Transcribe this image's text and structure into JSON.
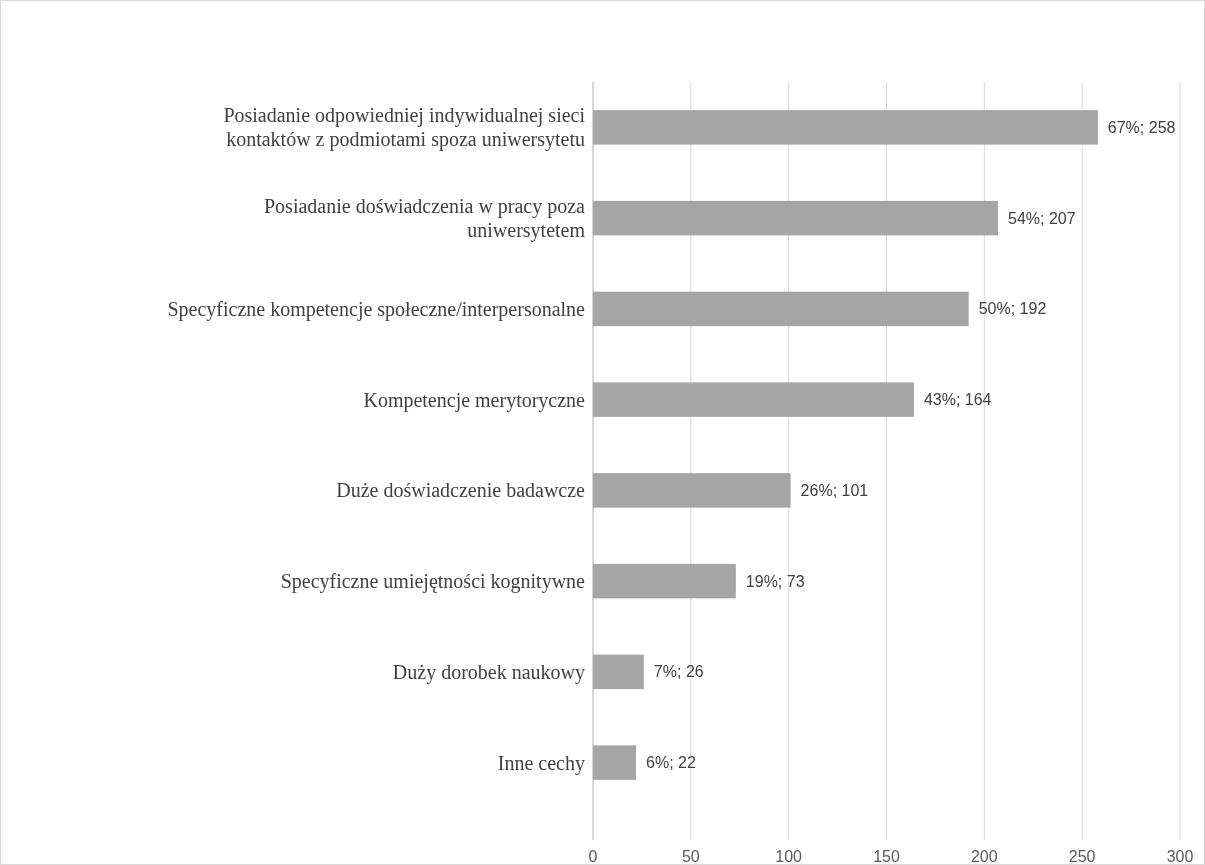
{
  "chart_data": {
    "type": "bar",
    "orientation": "horizontal",
    "categories": [
      "Posiadanie odpowiedniej indywidualnej sieci\nkontaktów z podmiotami spoza uniwersytetu",
      "Posiadanie doświadczenia w pracy poza\nuniwersytetem",
      "Specyficzne kompetencje społeczne/interpersonalne",
      "Kompetencje merytoryczne",
      "Duże doświadczenie badawcze",
      "Specyficzne umiejętności kognitywne",
      "Duży dorobek naukowy",
      "Inne cechy"
    ],
    "values": [
      258,
      207,
      192,
      164,
      101,
      73,
      26,
      22
    ],
    "value_labels": [
      "67%; 258",
      "54%; 207",
      "50%; 192",
      "43%; 164",
      "26%; 101",
      "19%; 73",
      "7%; 26",
      "6%; 22"
    ],
    "color": "#a5a5a5",
    "xlim": [
      0,
      300
    ],
    "xticks": [
      0,
      50,
      100,
      150,
      200,
      250,
      300
    ],
    "grid": "x"
  }
}
